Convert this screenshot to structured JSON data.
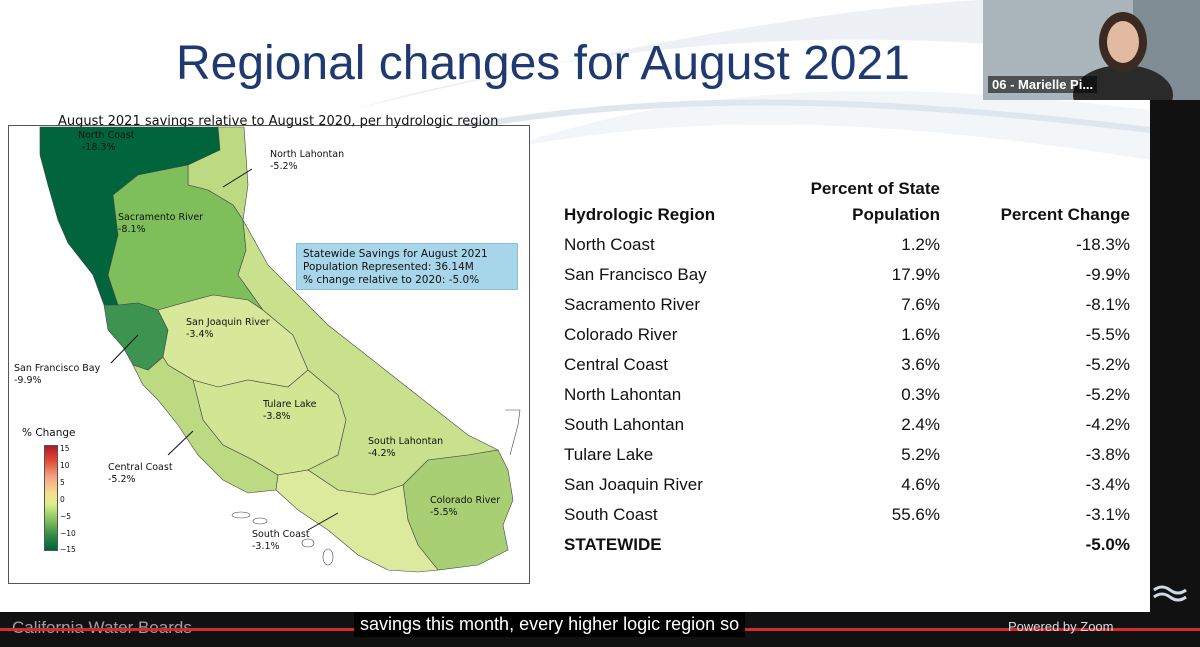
{
  "slide": {
    "title": "Regional changes for August 2021",
    "map_title": "August 2021 savings relative to August 2020, per hydrologic region",
    "infobox": {
      "line1": "Statewide Savings for August 2021",
      "line2": "Population Represented: 36.14M",
      "line3": "% change relative to 2020: -5.0%"
    },
    "legend": {
      "title": "% Change",
      "ticks": [
        "15",
        "10",
        "5",
        "0",
        "−5",
        "−10",
        "−15"
      ]
    },
    "regions": [
      {
        "name": "North Coast",
        "value": "-18.3%",
        "color": "#00643c"
      },
      {
        "name": "North Lahontan",
        "value": "-5.2%",
        "color": "#bcda82"
      },
      {
        "name": "Sacramento River",
        "value": "-8.1%",
        "color": "#7fbf5b"
      },
      {
        "name": "San Francisco Bay",
        "value": "-9.9%",
        "color": "#3d9450"
      },
      {
        "name": "San Joaquin River",
        "value": "-3.4%",
        "color": "#d8e89a"
      },
      {
        "name": "Tulare Lake",
        "value": "-3.8%",
        "color": "#d1e593"
      },
      {
        "name": "Central Coast",
        "value": "-5.2%",
        "color": "#bcda82"
      },
      {
        "name": "South Lahontan",
        "value": "-4.2%",
        "color": "#c9e08c"
      },
      {
        "name": "Colorado River",
        "value": "-5.5%",
        "color": "#a8cf74"
      },
      {
        "name": "South Coast",
        "value": "-3.1%",
        "color": "#dcea9e"
      }
    ],
    "table": {
      "headers": [
        "Hydrologic Region",
        "Percent of State Population",
        "Percent Change"
      ],
      "rows": [
        [
          "North Coast",
          "1.2%",
          "-18.3%"
        ],
        [
          "San Francisco Bay",
          "17.9%",
          "-9.9%"
        ],
        [
          "Sacramento River",
          "7.6%",
          "-8.1%"
        ],
        [
          "Colorado River",
          "1.6%",
          "-5.5%"
        ],
        [
          "Central Coast",
          "3.6%",
          "-5.2%"
        ],
        [
          "North Lahontan",
          "0.3%",
          "-5.2%"
        ],
        [
          "South Lahontan",
          "2.4%",
          "-4.2%"
        ],
        [
          "Tulare Lake",
          "5.2%",
          "-3.8%"
        ],
        [
          "San Joaquin River",
          "4.6%",
          "-3.4%"
        ],
        [
          "South Coast",
          "55.6%",
          "-3.1%"
        ]
      ],
      "total": [
        "STATEWIDE",
        "",
        "-5.0%"
      ]
    }
  },
  "video": {
    "participant_name": "06 - Marielle Pi..."
  },
  "footer": {
    "brand": "California Water Boards",
    "caption": "savings this month, every higher logic region so",
    "powered": "Powered by Zoom"
  }
}
